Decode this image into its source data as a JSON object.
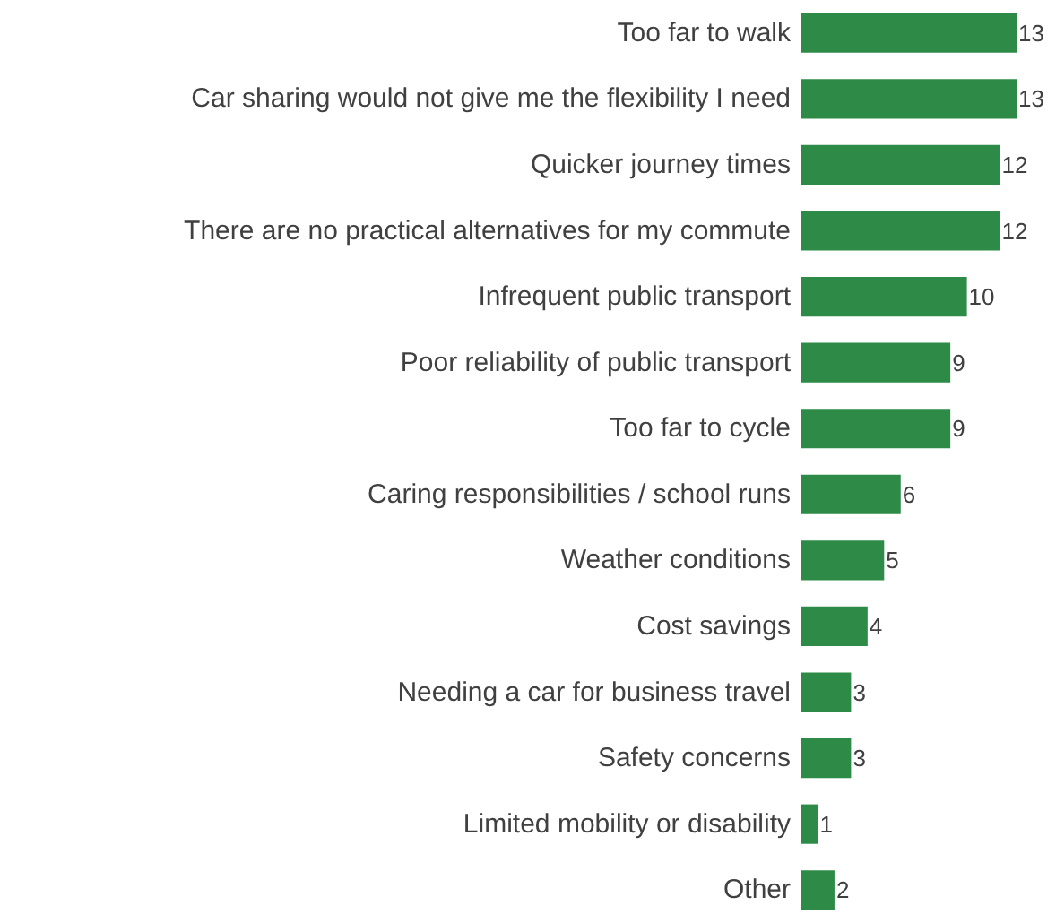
{
  "chart_data": {
    "type": "bar",
    "orientation": "horizontal",
    "categories": [
      "Too far to walk",
      "Car sharing would not give me the flexibility I need",
      "Quicker journey times",
      "There are no practical alternatives for my commute",
      "Infrequent public transport",
      "Poor reliability of public transport",
      "Too far to cycle",
      "Caring responsibilities / school runs",
      "Weather conditions",
      "Cost savings",
      "Needing a car for business travel",
      "Safety concerns",
      "Limited mobility or disability",
      "Other"
    ],
    "values": [
      13,
      13,
      12,
      12,
      10,
      9,
      9,
      6,
      5,
      4,
      3,
      3,
      1,
      2
    ],
    "color": "#2e8b47",
    "data_labels": true,
    "tick_labels": "y"
  }
}
